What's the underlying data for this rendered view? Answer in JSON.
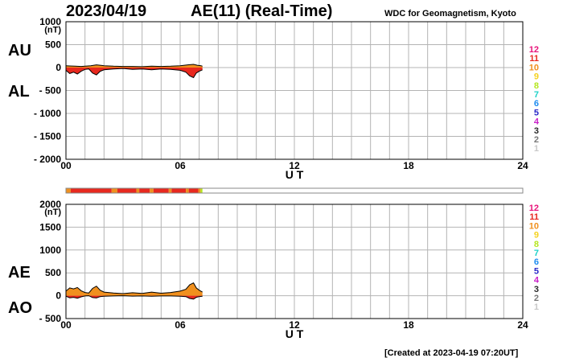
{
  "header": {
    "date": "2023/04/19",
    "title": "AE(11) (Real-Time)",
    "source": "WDC for Geomagnetism, Kyoto"
  },
  "footer": {
    "created": "[Created at 2023-04-19 07:20UT]"
  },
  "colors": {
    "grid": "#b4b4b4",
    "positive_fill": "#f0901e",
    "negative_fill": "#e8281e",
    "trace": "#000000",
    "bar_orange": "#f0901e",
    "bar_red": "#e8281e",
    "bar_green": "#78c850"
  },
  "station_count_legend": [
    {
      "label": "12",
      "color": "#e8147a"
    },
    {
      "label": "11",
      "color": "#e8281e"
    },
    {
      "label": "10",
      "color": "#f0901e"
    },
    {
      "label": "9",
      "color": "#f5d21e"
    },
    {
      "label": "8",
      "color": "#b4e61e"
    },
    {
      "label": "7",
      "color": "#1ed2c8"
    },
    {
      "label": "6",
      "color": "#1e8cf0"
    },
    {
      "label": "5",
      "color": "#2828c8"
    },
    {
      "label": "4",
      "color": "#c81ec8"
    },
    {
      "label": "3",
      "color": "#282828"
    },
    {
      "label": "2",
      "color": "#787878"
    },
    {
      "label": "1",
      "color": "#c8c8c8"
    }
  ],
  "chart_data": [
    {
      "type": "area",
      "panel": "AU/AL",
      "side_labels": [
        "AU",
        "AL"
      ],
      "ylabel": "(nT)",
      "xlabel": "U T",
      "xlim": [
        0,
        24
      ],
      "ylim": [
        -2000,
        1000
      ],
      "x_ticks": [
        "00",
        "06",
        "12",
        "18",
        "24"
      ],
      "y_ticks": [
        "1000",
        "500",
        "0",
        "- 500",
        "- 1000",
        "- 1500",
        "- 2000"
      ],
      "grid": true,
      "series": [
        {
          "name": "AU",
          "x": [
            0,
            0.2,
            0.5,
            0.8,
            1.0,
            1.3,
            1.6,
            2.0,
            2.5,
            3.0,
            3.5,
            4.0,
            4.5,
            5.0,
            5.5,
            6.0,
            6.4,
            6.7,
            6.9,
            7.1,
            7.17
          ],
          "values": [
            40,
            35,
            30,
            25,
            30,
            40,
            60,
            40,
            30,
            25,
            25,
            20,
            30,
            25,
            30,
            40,
            60,
            70,
            50,
            40,
            30
          ]
        },
        {
          "name": "AL",
          "x": [
            0,
            0.2,
            0.4,
            0.6,
            0.8,
            1.0,
            1.2,
            1.4,
            1.6,
            1.8,
            2.0,
            2.5,
            3.0,
            3.5,
            4.0,
            4.5,
            5.0,
            5.5,
            6.0,
            6.3,
            6.5,
            6.7,
            6.85,
            7.0,
            7.17
          ],
          "values": [
            -60,
            -130,
            -100,
            -140,
            -80,
            -40,
            -30,
            -120,
            -160,
            -80,
            -50,
            -30,
            -20,
            -40,
            -30,
            -50,
            -30,
            -40,
            -60,
            -100,
            -180,
            -220,
            -120,
            -80,
            -50
          ]
        }
      ]
    },
    {
      "type": "area",
      "panel": "AE/AO",
      "side_labels": [
        "AE",
        "AO"
      ],
      "ylabel": "(nT)",
      "xlabel": "U T",
      "xlim": [
        0,
        24
      ],
      "ylim": [
        -500,
        2000
      ],
      "x_ticks": [
        "00",
        "06",
        "12",
        "18",
        "24"
      ],
      "y_ticks": [
        "2000",
        "1500",
        "1000",
        "500",
        "0",
        "- 500"
      ],
      "grid": true,
      "series": [
        {
          "name": "AE",
          "x": [
            0,
            0.2,
            0.4,
            0.6,
            0.8,
            1.0,
            1.2,
            1.4,
            1.6,
            1.8,
            2.0,
            2.5,
            3.0,
            3.5,
            4.0,
            4.5,
            5.0,
            5.5,
            6.0,
            6.3,
            6.5,
            6.7,
            6.85,
            7.0,
            7.17
          ],
          "values": [
            100,
            170,
            150,
            180,
            110,
            70,
            60,
            160,
            210,
            120,
            80,
            60,
            45,
            65,
            50,
            80,
            55,
            70,
            100,
            140,
            240,
            280,
            170,
            120,
            80
          ]
        },
        {
          "name": "AO",
          "x": [
            0,
            0.2,
            0.4,
            0.6,
            0.8,
            1.0,
            1.2,
            1.4,
            1.6,
            1.8,
            2.0,
            2.5,
            3.0,
            3.5,
            4.0,
            4.5,
            5.0,
            5.5,
            6.0,
            6.3,
            6.5,
            6.7,
            6.85,
            7.0,
            7.17
          ],
          "values": [
            -10,
            -45,
            -35,
            -55,
            -25,
            -5,
            0,
            -40,
            -50,
            -20,
            -10,
            -5,
            0,
            -8,
            -5,
            -10,
            -5,
            -5,
            -10,
            -20,
            -60,
            -75,
            -35,
            -20,
            -10
          ]
        }
      ]
    },
    {
      "type": "heatmap",
      "panel": "station-count-bar",
      "xlim": [
        0,
        24
      ],
      "segments": [
        {
          "start": 0,
          "end": 0.25,
          "count": 10
        },
        {
          "start": 0.25,
          "end": 2.4,
          "count": 11
        },
        {
          "start": 2.4,
          "end": 2.7,
          "count": 10
        },
        {
          "start": 2.7,
          "end": 3.7,
          "count": 11
        },
        {
          "start": 3.7,
          "end": 3.85,
          "count": 10
        },
        {
          "start": 3.85,
          "end": 4.4,
          "count": 11
        },
        {
          "start": 4.4,
          "end": 4.6,
          "count": 10
        },
        {
          "start": 4.6,
          "end": 5.4,
          "count": 11
        },
        {
          "start": 5.4,
          "end": 5.55,
          "count": 10
        },
        {
          "start": 5.55,
          "end": 6.3,
          "count": 11
        },
        {
          "start": 6.3,
          "end": 6.45,
          "count": 10
        },
        {
          "start": 6.45,
          "end": 6.95,
          "count": 11
        },
        {
          "start": 6.95,
          "end": 7.07,
          "count": 10
        },
        {
          "start": 7.07,
          "end": 7.17,
          "count": 8
        }
      ]
    }
  ]
}
